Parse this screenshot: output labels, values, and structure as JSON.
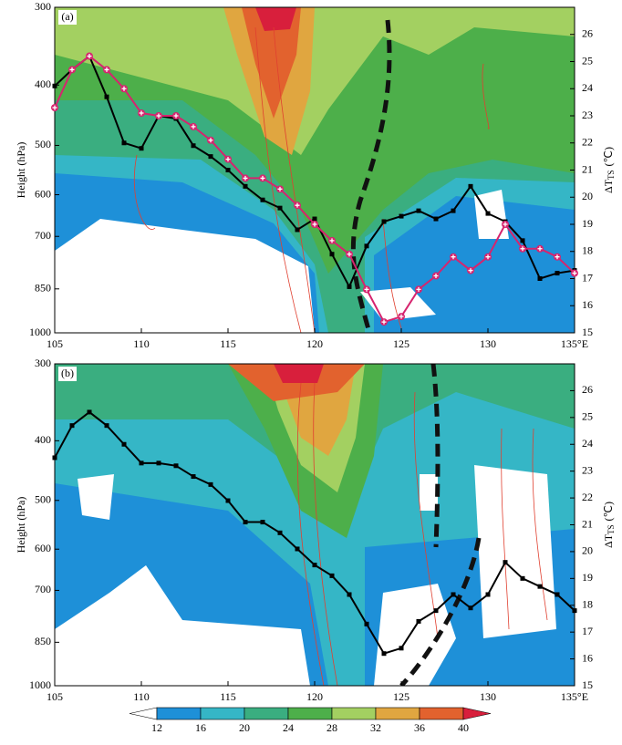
{
  "chart_data": [
    {
      "type": "line",
      "panel_label": "(a)",
      "ylabel": "Height (hPa)",
      "y2label": {
        "symbol": "ΔT",
        "subscript": "TS",
        "unit": "(℃)"
      },
      "x": [
        105,
        106,
        107,
        108,
        109,
        110,
        111,
        112,
        113,
        114,
        115,
        116,
        117,
        118,
        119,
        120,
        121,
        122,
        123,
        124,
        125,
        126,
        127,
        128,
        129,
        130,
        131,
        132,
        133,
        134,
        135
      ],
      "xlim": [
        105,
        135
      ],
      "xticks": [
        105,
        110,
        115,
        120,
        125,
        130,
        {
          "value": 135,
          "label": "135°E"
        }
      ],
      "ylim": [
        1000,
        300
      ],
      "ylog": true,
      "yticks": [
        300,
        400,
        500,
        600,
        700,
        850,
        1000
      ],
      "y2lim": [
        15,
        27
      ],
      "y2ticks": [
        15,
        16,
        17,
        18,
        19,
        20,
        21,
        22,
        23,
        24,
        25,
        26
      ],
      "series": [
        {
          "color": "#000000",
          "marker": "square",
          "axis": "y2",
          "values": [
            24.1,
            24.7,
            25.2,
            23.7,
            22.0,
            21.8,
            23.0,
            22.9,
            21.9,
            21.5,
            21.0,
            20.4,
            19.9,
            19.6,
            18.8,
            19.2,
            17.9,
            16.7,
            18.2,
            19.1,
            19.3,
            19.5,
            19.2,
            19.5,
            20.4,
            19.4,
            19.1,
            18.4,
            17.0,
            17.2,
            17.3
          ]
        },
        {
          "color": "#d6246e",
          "marker": "cross",
          "axis": "y2",
          "values": [
            23.3,
            24.7,
            25.2,
            24.7,
            24.0,
            23.1,
            23.0,
            23.0,
            22.6,
            22.1,
            21.4,
            20.7,
            20.7,
            20.3,
            19.7,
            19.0,
            18.4,
            17.9,
            16.6,
            15.4,
            15.6,
            16.6,
            17.1,
            17.8,
            17.3,
            17.8,
            19.0,
            18.1,
            18.1,
            17.8,
            17.2
          ]
        }
      ]
    },
    {
      "type": "line",
      "panel_label": "(b)",
      "ylabel": "Height (hPa)",
      "y2label": {
        "symbol": "ΔT",
        "subscript": "TS",
        "unit": "(℃)"
      },
      "x": [
        105,
        106,
        107,
        108,
        109,
        110,
        111,
        112,
        113,
        114,
        115,
        116,
        117,
        118,
        119,
        120,
        121,
        122,
        123,
        124,
        125,
        126,
        127,
        128,
        129,
        130,
        131,
        132,
        133,
        134,
        135
      ],
      "xlim": [
        105,
        135
      ],
      "xticks": [
        105,
        110,
        115,
        120,
        125,
        130,
        {
          "value": 135,
          "label": "135°E"
        }
      ],
      "ylim": [
        1000,
        300
      ],
      "ylog": true,
      "yticks": [
        300,
        400,
        500,
        600,
        700,
        850,
        1000
      ],
      "y2lim": [
        15,
        27
      ],
      "y2ticks": [
        15,
        16,
        17,
        18,
        19,
        20,
        21,
        22,
        23,
        24,
        25,
        26
      ],
      "series": [
        {
          "color": "#000000",
          "marker": "square",
          "axis": "y2",
          "values": [
            23.5,
            24.7,
            25.2,
            24.7,
            24.0,
            23.3,
            23.3,
            23.2,
            22.8,
            22.5,
            21.9,
            21.1,
            21.1,
            20.7,
            20.1,
            19.5,
            19.1,
            18.4,
            17.3,
            16.2,
            16.4,
            17.4,
            17.8,
            18.4,
            17.9,
            18.4,
            19.6,
            19.0,
            18.7,
            18.4,
            17.8
          ]
        }
      ]
    }
  ],
  "colorbar": {
    "levels": [
      12,
      16,
      20,
      24,
      28,
      32,
      36,
      40
    ],
    "colors": [
      "#ffffff",
      "#1e90d8",
      "#35b6c6",
      "#3aae80",
      "#4daf4a",
      "#a3d061",
      "#e0a640",
      "#e2622e",
      "#d81f3c"
    ]
  }
}
